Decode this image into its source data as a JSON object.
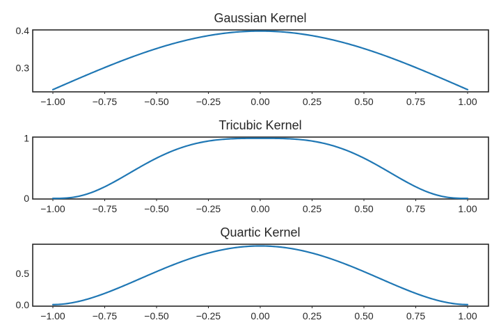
{
  "chart_data": [
    {
      "type": "line",
      "title": "Gaussian Kernel",
      "kernel": "gaussian",
      "xlim": [
        -1.0,
        1.0
      ],
      "ylim": [
        0.236,
        0.402
      ],
      "xticks": [
        -1.0,
        -0.75,
        -0.5,
        -0.25,
        0.0,
        0.25,
        0.5,
        0.75,
        1.0
      ],
      "xticklabels": [
        "−1.00",
        "−0.75",
        "−0.50",
        "−0.25",
        "0.00",
        "0.25",
        "0.50",
        "0.75",
        "1.00"
      ],
      "yticks": [
        0.3,
        0.4
      ],
      "yticklabels": [
        "0.3",
        "0.4"
      ],
      "x": [
        -1.0,
        -0.75,
        -0.5,
        -0.25,
        0.0,
        0.25,
        0.5,
        0.75,
        1.0
      ],
      "y": [
        0.242,
        0.301,
        0.352,
        0.387,
        0.399,
        0.387,
        0.352,
        0.301,
        0.242
      ]
    },
    {
      "type": "line",
      "title": "Tricubic Kernel",
      "kernel": "tricube",
      "xlim": [
        -1.0,
        1.0
      ],
      "ylim": [
        -0.01,
        1.02
      ],
      "xticks": [
        -1.0,
        -0.75,
        -0.5,
        -0.25,
        0.0,
        0.25,
        0.5,
        0.75,
        1.0
      ],
      "xticklabels": [
        "−1.00",
        "−0.75",
        "−0.50",
        "−0.25",
        "0.00",
        "0.25",
        "0.50",
        "0.75",
        "1.00"
      ],
      "yticks": [
        0,
        1
      ],
      "yticklabels": [
        "0",
        "1"
      ],
      "x": [
        -1.0,
        -0.75,
        -0.5,
        -0.25,
        0.0,
        0.25,
        0.5,
        0.75,
        1.0
      ],
      "y": [
        0.0,
        0.193,
        0.67,
        0.954,
        1.0,
        0.954,
        0.67,
        0.193,
        0.0
      ]
    },
    {
      "type": "line",
      "title": "Quartic Kernel",
      "kernel": "quartic",
      "xlim": [
        -1.0,
        1.0
      ],
      "ylim": [
        -0.025,
        0.965
      ],
      "xticks": [
        -1.0,
        -0.75,
        -0.5,
        -0.25,
        0.0,
        0.25,
        0.5,
        0.75,
        1.0
      ],
      "xticklabels": [
        "−1.00",
        "−0.75",
        "−0.50",
        "−0.25",
        "0.00",
        "0.25",
        "0.50",
        "0.75",
        "1.00"
      ],
      "yticks": [
        0.0,
        0.5
      ],
      "yticklabels": [
        "0.0",
        "0.5"
      ],
      "x": [
        -1.0,
        -0.75,
        -0.5,
        -0.25,
        0.0,
        0.25,
        0.5,
        0.75,
        1.0
      ],
      "y": [
        0.0,
        0.179,
        0.527,
        0.824,
        0.9375,
        0.824,
        0.527,
        0.179,
        0.0
      ]
    }
  ],
  "colors": {
    "line": "#1f77b4",
    "axes": "#262626",
    "background": "#ffffff"
  }
}
